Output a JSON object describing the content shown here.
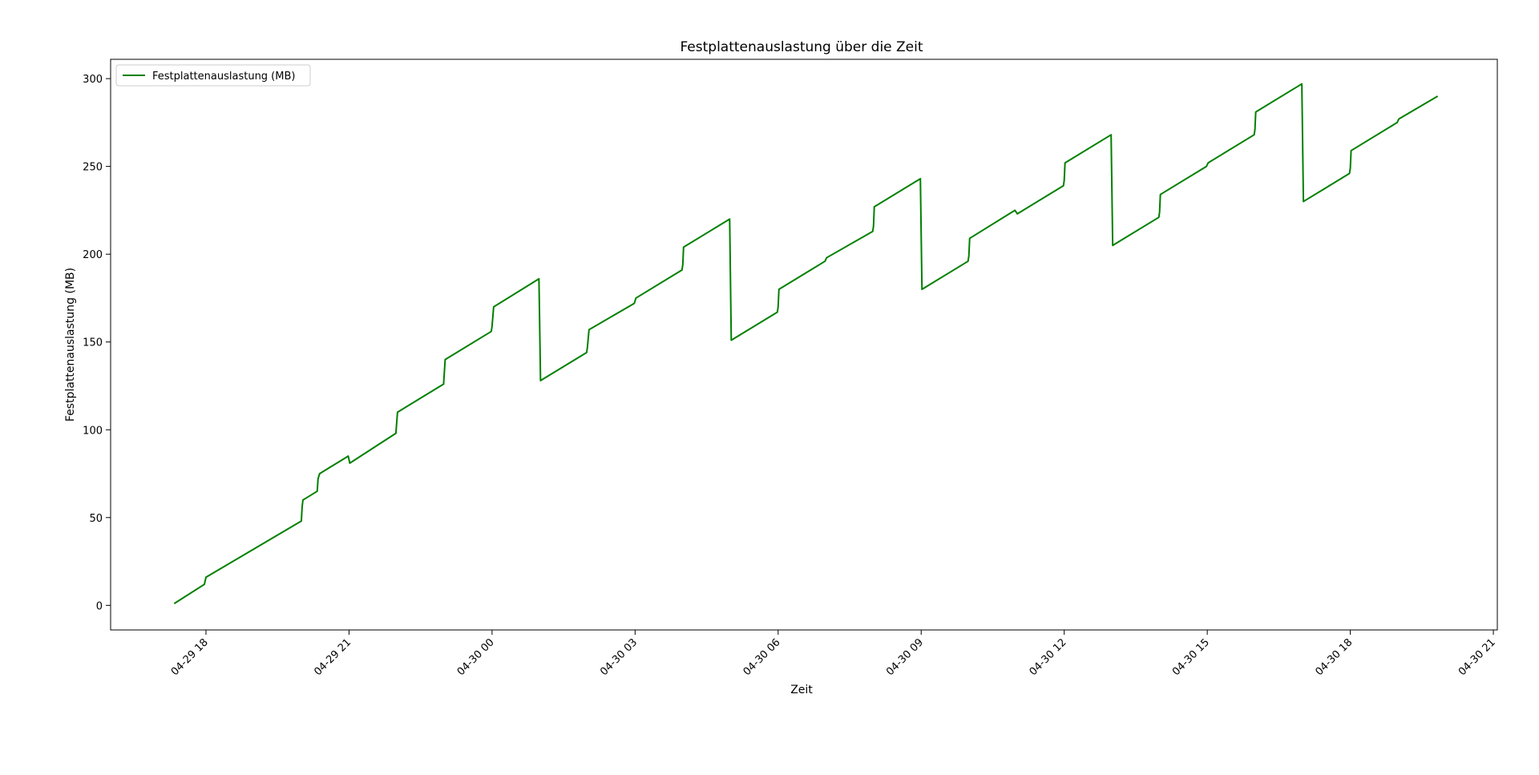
{
  "colors": {
    "line": "#008000",
    "axes": "#000000",
    "legend_border": "#cccccc"
  },
  "chart_data": {
    "type": "line",
    "title": "Festplattenauslastung über die Zeit",
    "xlabel": "Zeit",
    "ylabel": "Festplattenauslastung (MB)",
    "grid": false,
    "legend_position": "top-left",
    "xlim": [
      "04-29 16:00",
      "04-30 21:05"
    ],
    "ylim": [
      -14,
      311
    ],
    "x_ticks": [
      "04-29 18",
      "04-29 21",
      "04-30 00",
      "04-30 03",
      "04-30 06",
      "04-30 09",
      "04-30 12",
      "04-30 15",
      "04-30 18",
      "04-30 21"
    ],
    "y_ticks": [
      0,
      50,
      100,
      150,
      200,
      250,
      300
    ],
    "series": [
      {
        "name": "Festplattenauslastung (MB)",
        "points": [
          [
            "04-29 17:20",
            1
          ],
          [
            "04-29 17:58",
            12
          ],
          [
            "04-29 18:00",
            16
          ],
          [
            "04-29 20:00",
            48
          ],
          [
            "04-29 20:01",
            56
          ],
          [
            "04-29 20:02",
            60
          ],
          [
            "04-29 20:20",
            65
          ],
          [
            "04-29 20:21",
            72
          ],
          [
            "04-29 20:23",
            75
          ],
          [
            "04-29 20:59",
            85
          ],
          [
            "04-29 21:01",
            81
          ],
          [
            "04-29 21:59",
            98
          ],
          [
            "04-29 22:01",
            110
          ],
          [
            "04-29 22:59",
            126
          ],
          [
            "04-29 23:01",
            140
          ],
          [
            "04-29 23:59",
            156
          ],
          [
            "04-30 00:00",
            159
          ],
          [
            "04-30 00:02",
            170
          ],
          [
            "04-30 00:59",
            186
          ],
          [
            "04-30 01:01",
            128
          ],
          [
            "04-30 01:59",
            144
          ],
          [
            "04-30 02:00",
            147
          ],
          [
            "04-30 02:02",
            157
          ],
          [
            "04-30 02:59",
            172
          ],
          [
            "04-30 03:01",
            175
          ],
          [
            "04-30 03:59",
            191
          ],
          [
            "04-30 04:00",
            194
          ],
          [
            "04-30 04:01",
            204
          ],
          [
            "04-30 04:59",
            220
          ],
          [
            "04-30 05:01",
            151
          ],
          [
            "04-30 05:59",
            167
          ],
          [
            "04-30 06:00",
            170
          ],
          [
            "04-30 06:01",
            180
          ],
          [
            "04-30 06:59",
            196
          ],
          [
            "04-30 07:01",
            198
          ],
          [
            "04-30 07:59",
            213
          ],
          [
            "04-30 08:00",
            216
          ],
          [
            "04-30 08:01",
            227
          ],
          [
            "04-30 08:59",
            243
          ],
          [
            "04-30 09:01",
            180
          ],
          [
            "04-30 09:59",
            196
          ],
          [
            "04-30 10:00",
            199
          ],
          [
            "04-30 10:01",
            209
          ],
          [
            "04-30 10:58",
            225
          ],
          [
            "04-30 11:01",
            223
          ],
          [
            "04-30 11:59",
            239
          ],
          [
            "04-30 12:00",
            242
          ],
          [
            "04-30 12:01",
            252
          ],
          [
            "04-30 12:59",
            268
          ],
          [
            "04-30 13:01",
            205
          ],
          [
            "04-30 13:59",
            221
          ],
          [
            "04-30 14:00",
            224
          ],
          [
            "04-30 14:01",
            234
          ],
          [
            "04-30 14:59",
            250
          ],
          [
            "04-30 15:01",
            252
          ],
          [
            "04-30 15:59",
            268
          ],
          [
            "04-30 16:00",
            271
          ],
          [
            "04-30 16:01",
            281
          ],
          [
            "04-30 16:59",
            297
          ],
          [
            "04-30 17:01",
            230
          ],
          [
            "04-30 17:59",
            246
          ],
          [
            "04-30 18:00",
            249
          ],
          [
            "04-30 18:01",
            259
          ],
          [
            "04-30 18:59",
            275
          ],
          [
            "04-30 19:01",
            277
          ],
          [
            "04-30 19:50",
            290
          ]
        ]
      }
    ]
  }
}
